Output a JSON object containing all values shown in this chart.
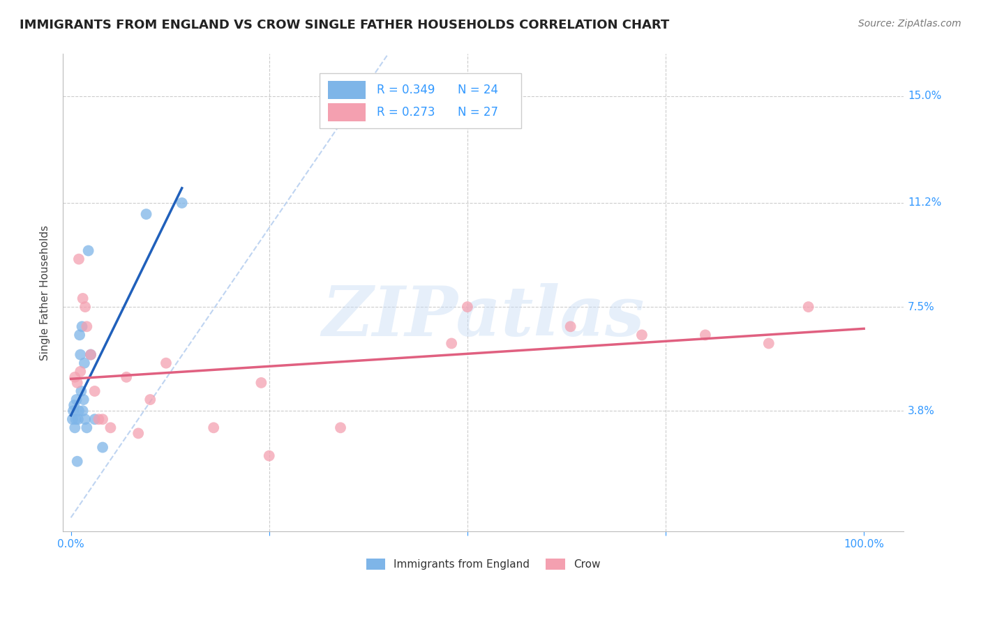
{
  "title": "IMMIGRANTS FROM ENGLAND VS CROW SINGLE FATHER HOUSEHOLDS CORRELATION CHART",
  "source": "Source: ZipAtlas.com",
  "ylabel": "Single Father Households",
  "xlim": [
    -1.0,
    105.0
  ],
  "ylim": [
    -0.5,
    16.5
  ],
  "yticks": [
    3.8,
    7.5,
    11.2,
    15.0
  ],
  "xticks": [
    0.0,
    25.0,
    50.0,
    75.0,
    100.0
  ],
  "xtick_labels": [
    "0.0%",
    "",
    "",
    "",
    "100.0%"
  ],
  "ytick_labels": [
    "3.8%",
    "7.5%",
    "11.2%",
    "15.0%"
  ],
  "england_color": "#7EB5E8",
  "crow_color": "#F4A0B0",
  "england_line_color": "#2060BB",
  "crow_line_color": "#E06080",
  "diagonal_color": "#B8D0F0",
  "legend_label_england": "Immigrants from England",
  "legend_label_crow": "Crow",
  "watermark": "ZIPatlas",
  "title_fontsize": 13,
  "axis_label_fontsize": 11,
  "tick_fontsize": 11,
  "england_x": [
    0.2,
    0.3,
    0.4,
    0.5,
    0.6,
    0.7,
    0.8,
    0.9,
    1.0,
    1.1,
    1.2,
    1.3,
    1.4,
    1.5,
    1.6,
    1.7,
    1.8,
    2.0,
    2.2,
    2.5,
    3.0,
    4.0,
    9.5,
    14.0
  ],
  "england_y": [
    3.5,
    3.8,
    4.0,
    3.2,
    3.5,
    4.2,
    2.0,
    3.5,
    3.8,
    6.5,
    5.8,
    4.5,
    6.8,
    3.8,
    4.2,
    5.5,
    3.5,
    3.2,
    9.5,
    5.8,
    3.5,
    2.5,
    10.8,
    11.2
  ],
  "crow_x": [
    0.5,
    0.8,
    1.0,
    1.2,
    1.5,
    1.8,
    2.0,
    2.5,
    3.0,
    3.5,
    4.0,
    5.0,
    7.0,
    8.5,
    10.0,
    12.0,
    18.0,
    24.0,
    34.0,
    50.0,
    63.0,
    72.0,
    80.0,
    88.0,
    93.0,
    48.0,
    25.0
  ],
  "crow_y": [
    5.0,
    4.8,
    9.2,
    5.2,
    7.8,
    7.5,
    6.8,
    5.8,
    4.5,
    3.5,
    3.5,
    3.2,
    5.0,
    3.0,
    4.2,
    5.5,
    3.2,
    4.8,
    3.2,
    7.5,
    6.8,
    6.5,
    6.5,
    6.2,
    7.5,
    6.2,
    2.2
  ]
}
